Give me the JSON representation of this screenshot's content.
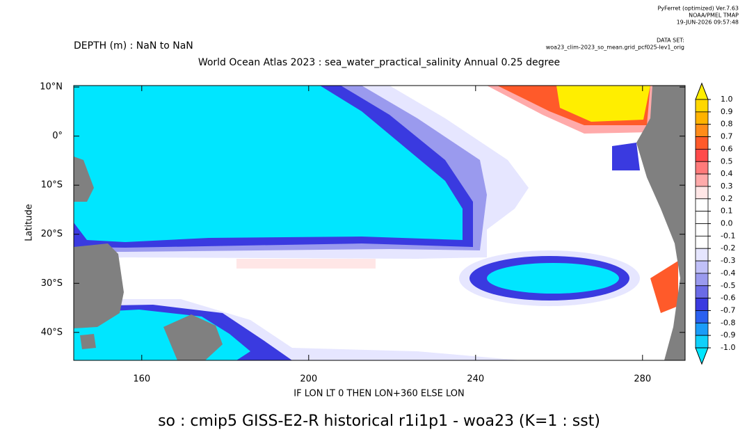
{
  "header": {
    "software": "PyFerret (optimized) Ver.7.63",
    "institution": "NOAA/PMEL TMAP",
    "date": "19-JUN-2026 09:57:48",
    "dataset_label": "DATA SET:",
    "dataset": "woa23_clim-2023_so_mean.grid_pcf025-lev1_orig"
  },
  "chart_data": {
    "type": "shaded-map",
    "depth_label": "DEPTH (m) : NaN to NaN",
    "title": "World Ocean Atlas 2023 : sea_water_practical_salinity Annual  0.25 degree",
    "y_label": "Latitude",
    "x_label": "IF LON LT 0 THEN LON+360 ELSE LON",
    "caption": "so : cmip5 GISS-E2-R historical r1i1p1 - woa23  (K=1 : sst)",
    "xlim": [
      143.7,
      290.2
    ],
    "ylim": [
      -45.7,
      10.3
    ],
    "xticks": [
      160,
      200,
      240,
      280
    ],
    "yticks": [
      {
        "value": 10,
        "label": "10°N"
      },
      {
        "value": 0,
        "label": "0°"
      },
      {
        "value": -10,
        "label": "10°S"
      },
      {
        "value": -20,
        "label": "20°S"
      },
      {
        "value": -30,
        "label": "30°S"
      },
      {
        "value": -40,
        "label": "40°S"
      }
    ],
    "colorbar": {
      "levels": [
        {
          "value": 1,
          "label": "1.0"
        },
        0.9,
        0.8,
        0.7,
        0.6,
        0.5,
        0.4,
        0.3,
        0.2,
        0.1,
        {
          "value": 0,
          "label": "0.0"
        },
        -0.1,
        -0.2,
        -0.3,
        -0.4,
        -0.5,
        -0.6,
        -0.7,
        -0.8,
        -0.9,
        {
          "value": -1,
          "label": "-1.0"
        }
      ],
      "colors": [
        "#ffee00",
        "#ffd700",
        "#ffb300",
        "#ff8c1a",
        "#ff5a2a",
        "#ff4a4a",
        "#ff7a7a",
        "#ffaaaa",
        "#ffe6e6",
        "#ffffff",
        "#ffffff",
        "#ffffff",
        "#ffffff",
        "#e6e6ff",
        "#c0c0f8",
        "#9a9aee",
        "#6b6be6",
        "#3a3ae0",
        "#2a60f0",
        "#1a9cf8",
        "#10d0fa",
        "#00e6ff"
      ]
    }
  }
}
